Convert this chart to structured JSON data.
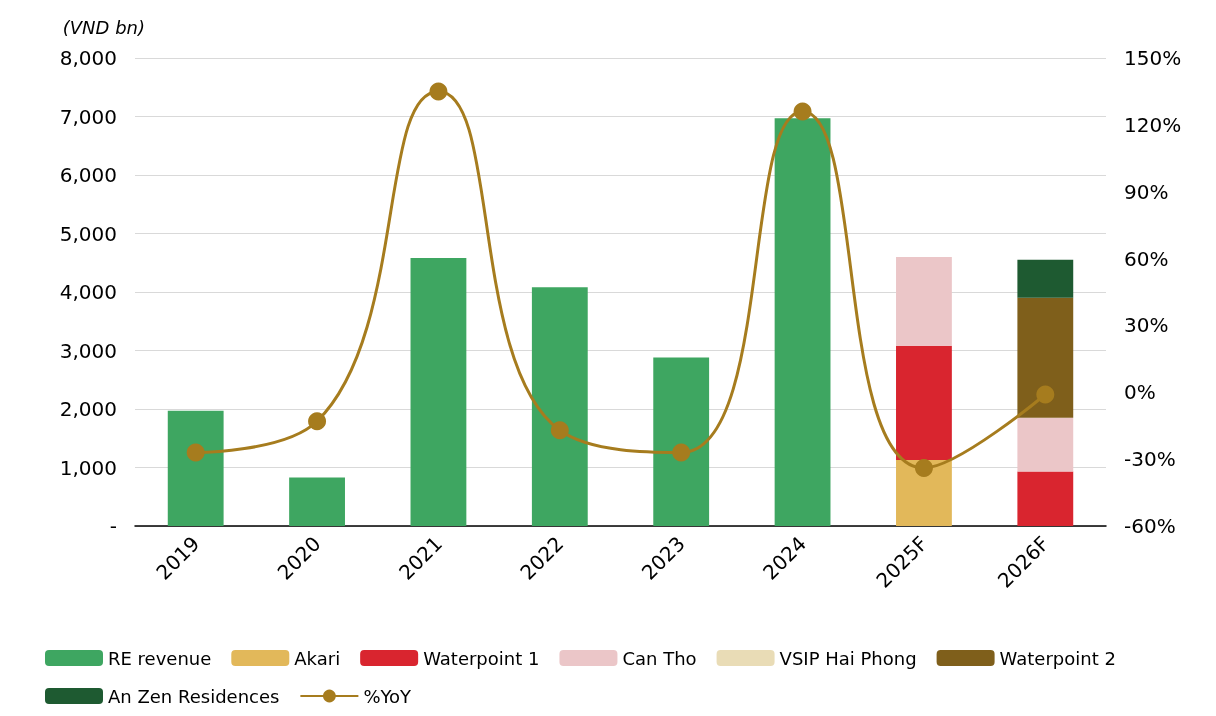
{
  "chart_data": {
    "type": "bar",
    "stacked": true,
    "ylabel": "(VND bn)",
    "categories": [
      "2019",
      "2020",
      "2021",
      "2022",
      "2023",
      "2024",
      "2025F",
      "2026F"
    ],
    "series": [
      {
        "name": "RE revenue",
        "color": "#3ea661",
        "values": [
          1970,
          830,
          4580,
          4080,
          2880,
          6970,
          null,
          null
        ]
      },
      {
        "name": "Akari",
        "color": "#e2b85a",
        "values": [
          null,
          null,
          null,
          null,
          null,
          null,
          1130,
          null
        ]
      },
      {
        "name": "Waterpoint 1",
        "color": "#d9252f",
        "values": [
          null,
          null,
          null,
          null,
          null,
          null,
          1950,
          930
        ]
      },
      {
        "name": "Can Tho",
        "color": "#ebc6c8",
        "values": [
          null,
          null,
          null,
          null,
          null,
          null,
          1520,
          920
        ]
      },
      {
        "name": "VSIP Hai Phong",
        "color": "#e9dcb6",
        "values": [
          null,
          null,
          null,
          null,
          null,
          null,
          null,
          null
        ]
      },
      {
        "name": "Waterpoint 2",
        "color": "#7f5f1b",
        "values": [
          null,
          null,
          null,
          null,
          null,
          null,
          null,
          2050
        ]
      },
      {
        "name": "An Zen Residences",
        "color": "#1e5a31",
        "values": [
          null,
          null,
          null,
          null,
          null,
          null,
          null,
          650
        ]
      },
      {
        "name": "%YoY",
        "type": "line",
        "axis": "y2",
        "color": "#a67c1e",
        "marker": "circle",
        "values": [
          -27,
          -13,
          135,
          -17,
          -27,
          126,
          -34,
          -1
        ]
      }
    ],
    "ylim": [
      0,
      8000
    ],
    "yticks": [
      {
        "value": 0,
        "label": "-"
      },
      {
        "value": 1000,
        "label": "1,000"
      },
      {
        "value": 2000,
        "label": "2,000"
      },
      {
        "value": 3000,
        "label": "3,000"
      },
      {
        "value": 4000,
        "label": "4,000"
      },
      {
        "value": 5000,
        "label": "5,000"
      },
      {
        "value": 6000,
        "label": "6,000"
      },
      {
        "value": 7000,
        "label": "7,000"
      },
      {
        "value": 8000,
        "label": "8,000"
      }
    ],
    "y2lim": [
      -60,
      150
    ],
    "y2ticks": [
      {
        "value": -60,
        "label": "-60%"
      },
      {
        "value": -30,
        "label": "-30%"
      },
      {
        "value": 0,
        "label": "0%"
      },
      {
        "value": 30,
        "label": "30%"
      },
      {
        "value": 60,
        "label": "60%"
      },
      {
        "value": 90,
        "label": "90%"
      },
      {
        "value": 120,
        "label": "120%"
      },
      {
        "value": 150,
        "label": "150%"
      }
    ],
    "grid": "y",
    "legend": "bottom"
  }
}
